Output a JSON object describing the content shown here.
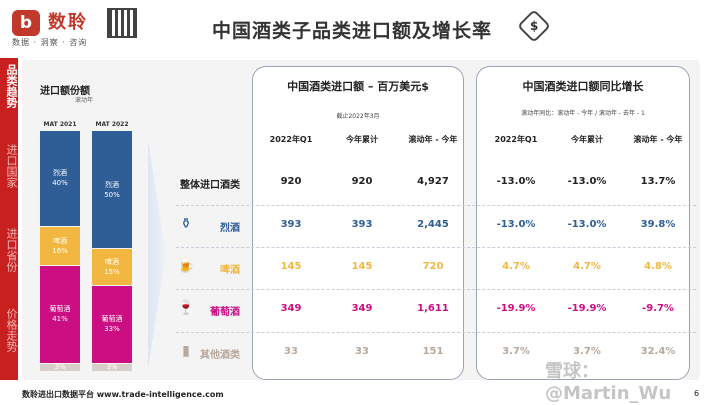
{
  "header": {
    "brand": "数聆",
    "brand_sub": "数据 · 洞察 · 咨询",
    "logo_letter": "b",
    "title": "中国酒类子品类进口额及增长率",
    "title_icon": "dollar-tag-icon"
  },
  "sidebar": [
    {
      "label": "品类趋势",
      "active": true
    },
    {
      "label": "进口国家",
      "active": false
    },
    {
      "label": "进口省份",
      "active": false
    },
    {
      "label": "价格走势",
      "active": false
    }
  ],
  "mix": {
    "title": "进口额份额",
    "subtitle": "滚动年",
    "columns": [
      {
        "label": "MAT 2021",
        "segments": [
          {
            "name": "烈酒",
            "pct": "40%",
            "value": 40,
            "color": "#2f5e97"
          },
          {
            "name": "啤酒",
            "pct": "16%",
            "value": 16,
            "color": "#f2b741"
          },
          {
            "name": "葡萄酒",
            "pct": "41%",
            "value": 41,
            "color": "#cc0e83"
          },
          {
            "name": "",
            "pct": "3%",
            "value": 3,
            "color": "#d8cfcb"
          }
        ]
      },
      {
        "label": "MAT 2022",
        "segments": [
          {
            "name": "烈酒",
            "pct": "50%",
            "value": 50,
            "color": "#2f5e97"
          },
          {
            "name": "啤酒",
            "pct": "15%",
            "value": 15,
            "color": "#f2b741"
          },
          {
            "name": "葡萄酒",
            "pct": "33%",
            "value": 33,
            "color": "#cc0e83"
          },
          {
            "name": "",
            "pct": "3%",
            "value": 3,
            "color": "#d8cfcb"
          }
        ]
      }
    ]
  },
  "value_table": {
    "title": "中国酒类进口额 – 百万美元$",
    "subtitle": "截止2022年3月",
    "headers": [
      "2022年Q1",
      "今年累计",
      "滚动年 - 今年"
    ]
  },
  "growth_table": {
    "title": "中国酒类进口额同比增长",
    "subtitle": "滚动年同比：滚动年 - 今年 / 滚动年 - 去年 - 1",
    "headers": [
      "2022年Q1",
      "今年累计",
      "滚动年 - 今年"
    ]
  },
  "rows": [
    {
      "label": "整体进口酒类",
      "icon": "",
      "color": "#222222",
      "values": [
        "920",
        "920",
        "4,927"
      ],
      "growth": [
        "-13.0%",
        "-13.0%",
        "13.7%"
      ]
    },
    {
      "label": "烈酒",
      "icon": "liquor-bottle-icon",
      "color": "#2f5e97",
      "values": [
        "393",
        "393",
        "2,445"
      ],
      "growth": [
        "-13.0%",
        "-13.0%",
        "39.8%"
      ]
    },
    {
      "label": "啤酒",
      "icon": "beer-mug-icon",
      "color": "#f2b741",
      "values": [
        "145",
        "145",
        "720"
      ],
      "growth": [
        "4.7%",
        "4.7%",
        "4.8%"
      ]
    },
    {
      "label": "葡萄酒",
      "icon": "wine-glass-icon",
      "color": "#cc0e83",
      "values": [
        "349",
        "349",
        "1,611"
      ],
      "growth": [
        "-19.9%",
        "-19.9%",
        "-9.7%"
      ]
    },
    {
      "label": "其他酒类",
      "icon": "other-bottles-icon",
      "color": "#b8a89c",
      "values": [
        "33",
        "33",
        "151"
      ],
      "growth": [
        "3.7%",
        "3.7%",
        "32.4%"
      ]
    }
  ],
  "footer": {
    "text": "数聆进出口数据平台 www.trade-intelligence.com",
    "page": "6"
  },
  "watermark": "雪球：@Martin_Wu"
}
